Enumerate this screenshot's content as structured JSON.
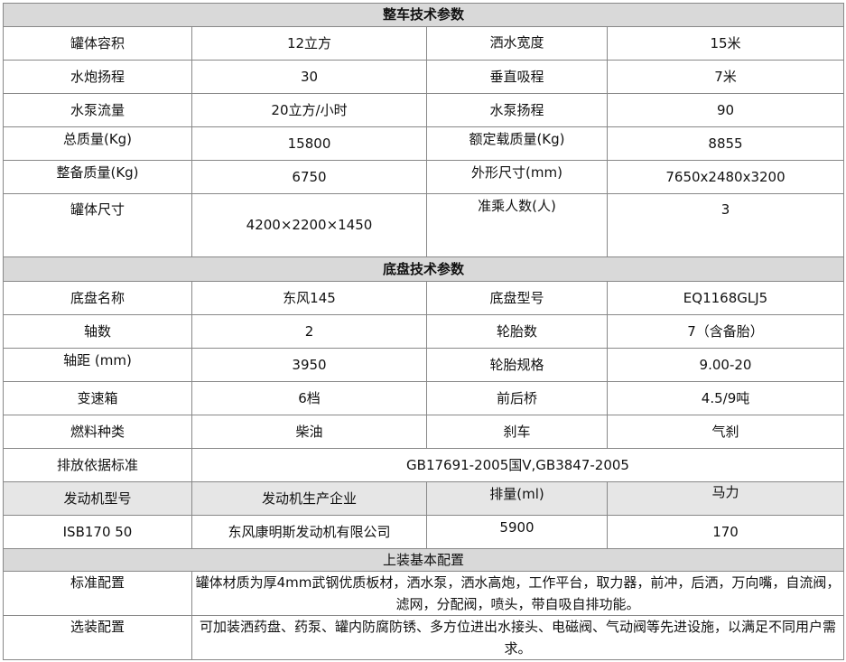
{
  "section1": {
    "title": "整车技术参数",
    "rows": [
      [
        "罐体容积",
        "12立方",
        "洒水宽度",
        "15米"
      ],
      [
        "水炮扬程",
        "30",
        "垂直吸程",
        "7米"
      ],
      [
        "水泵流量",
        "20立方/小时",
        "水泵扬程",
        "90"
      ],
      [
        "总质量(Kg)",
        "15800",
        "额定载质量(Kg)",
        "8855"
      ],
      [
        "整备质量(Kg)",
        "6750",
        "外形尺寸(mm)",
        "7650x2480x3200"
      ],
      [
        "罐体尺寸",
        "4200×2200×1450",
        "准乘人数(人)",
        "3"
      ]
    ]
  },
  "section2": {
    "title": "底盘技术参数",
    "rows": [
      [
        "底盘名称",
        "东风145",
        "底盘型号",
        "EQ1168GLJ5"
      ],
      [
        "轴数",
        "2",
        "轮胎数",
        "7（含备胎）"
      ],
      [
        "轴距 (mm)",
        "3950",
        "轮胎规格",
        "9.00-20"
      ],
      [
        "变速箱",
        "6档",
        "前后桥",
        "4.5/9吨"
      ],
      [
        "燃料种类",
        "柴油",
        "刹车",
        "气刹"
      ]
    ],
    "emission": {
      "label": "排放依据标准",
      "value": "GB17691-2005国Ⅴ,GB3847-2005"
    },
    "engine_headers": [
      "发动机型号",
      "发动机生产企业",
      "排量(ml)",
      "马力"
    ],
    "engine_values": [
      "ISB170 50",
      "东风康明斯发动机有限公司",
      "5900",
      "170"
    ]
  },
  "section3": {
    "title": "上装基本配置",
    "standard": {
      "label": "标准配置",
      "value": "罐体材质为厚4mm武钢优质板材，洒水泵，洒水高炮，工作平台，取力器，前冲，后洒，万向嘴，自流阀，滤网，分配阀，喷头，带自吸自排功能。"
    },
    "optional": {
      "label": "选装配置",
      "value": "可加装洒药盘、药泵、罐内防腐防锈、多方位进出水接头、电磁阀、气动阀等先进设施，以满足不同用户需求。"
    }
  }
}
